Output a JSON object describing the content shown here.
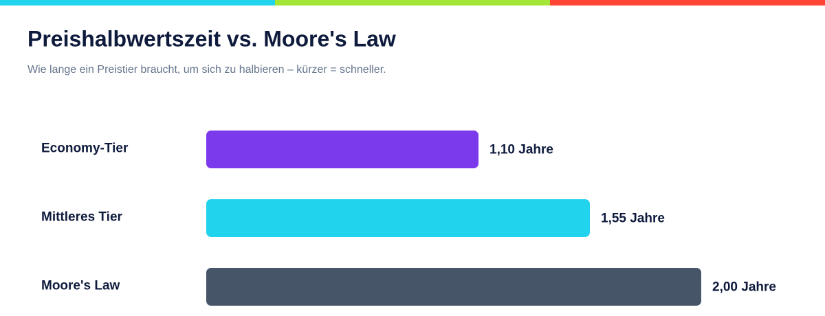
{
  "chart_data": {
    "type": "bar",
    "orientation": "horizontal",
    "title": "Preishalbwertszeit vs. Moore's Law",
    "subtitle": "Wie lange ein Preistier braucht, um sich zu halbieren – kürzer = schneller.",
    "categories": [
      "Economy-Tier",
      "Mittleres Tier",
      "Moore's Law"
    ],
    "values": [
      1.1,
      1.55,
      2.0
    ],
    "value_labels": [
      "1,10 Jahre",
      "1,55 Jahre",
      "2,00 Jahre"
    ],
    "colors": [
      "#7c3aed",
      "#22d3ee",
      "#475569"
    ]
  }
}
